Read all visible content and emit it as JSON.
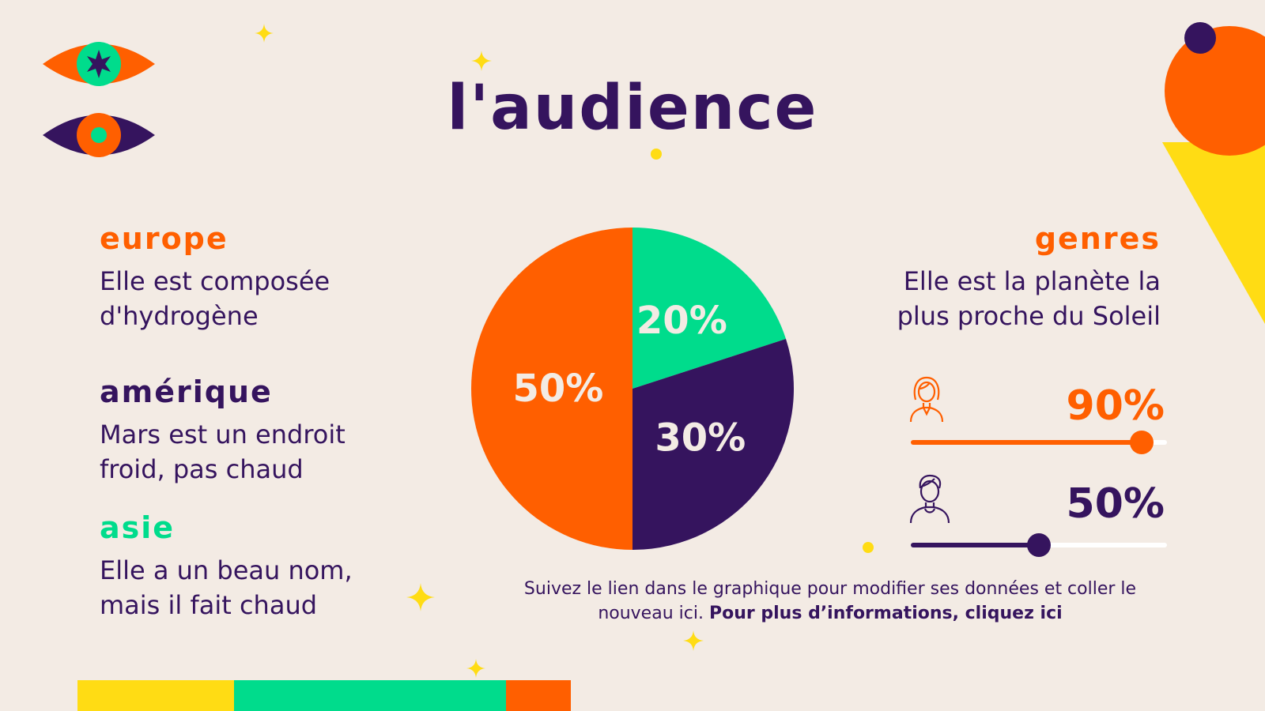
{
  "title": "L'audience",
  "regions": [
    {
      "heading": "Europe",
      "color": "#ff5f00",
      "line1": "Elle est composée",
      "line2": "d'hydrogène"
    },
    {
      "heading": "Amérique",
      "color": "#35145e",
      "line1": "Mars est un endroit",
      "line2": "froid, pas chaud"
    },
    {
      "heading": "Asie",
      "color": "#00dc8c",
      "line1": "Elle a un beau nom,",
      "line2": "mais il fait chaud"
    }
  ],
  "genres": {
    "heading": "Genres",
    "line1": "Elle est la planète la",
    "line2": "plus proche du Soleil",
    "items": [
      {
        "icon": "woman-icon",
        "label": "90%",
        "value": 0.9,
        "color": "#ff5f00"
      },
      {
        "icon": "man-icon",
        "label": "50%",
        "value": 0.5,
        "color": "#35145e"
      }
    ]
  },
  "note": {
    "text": "Suivez le lien dans le graphique pour modifier ses données et coller le nouveau ici.",
    "link": "Pour plus d’informations, cliquez ici"
  },
  "colors": {
    "orange": "#ff5f00",
    "purple": "#35145e",
    "green": "#00dc8c",
    "yellow": "#ffdc14",
    "background": "#f3ebe4"
  },
  "chart_data": {
    "type": "pie",
    "slices": [
      {
        "label": "20%",
        "value": 20,
        "color": "#00dc8c"
      },
      {
        "label": "30%",
        "value": 30,
        "color": "#35145e"
      },
      {
        "label": "50%",
        "value": 50,
        "color": "#ff5f00"
      }
    ]
  }
}
